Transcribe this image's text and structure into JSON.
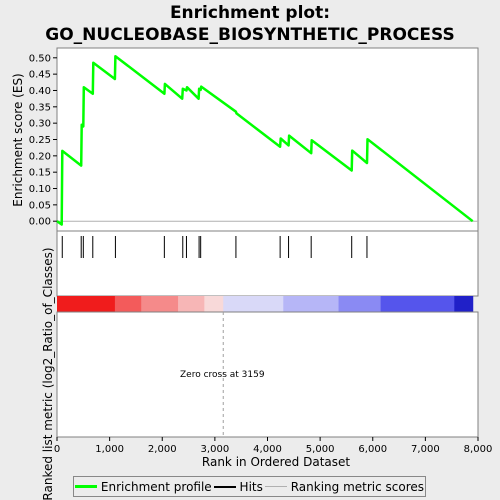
{
  "chart_data": {
    "type": "line",
    "title_line1": "Enrichment plot:",
    "title_line2": "GO_NUCLEOBASE_BIOSYNTHETIC_PROCESS",
    "ylabel_top": "Enrichment score (ES)",
    "ylabel_bottom": "Ranked list metric (log2_Ratio_of_Classes)",
    "xlabel": "Rank in Ordered Dataset",
    "annotation": "Zero cross at 3159",
    "zero_cross": 3159,
    "xlim": [
      0,
      8000
    ],
    "ylim": [
      -0.03,
      0.53
    ],
    "x_ticks": [
      0,
      1000,
      2000,
      3000,
      4000,
      5000,
      6000,
      7000,
      8000
    ],
    "x_tick_labels": [
      "0",
      "1,000",
      "2,000",
      "3,000",
      "4,000",
      "5,000",
      "6,000",
      "7,000",
      "8,000"
    ],
    "y_ticks": [
      0.0,
      0.05,
      0.1,
      0.15,
      0.2,
      0.25,
      0.3,
      0.35,
      0.4,
      0.45,
      0.5
    ],
    "y_tick_labels": [
      "0.00",
      "0.05",
      "0.10",
      "0.15",
      "0.20",
      "0.25",
      "0.30",
      "0.35",
      "0.40",
      "0.45",
      "0.50"
    ],
    "series": [
      {
        "name": "Enrichment profile",
        "color": "#00ff00",
        "points": [
          [
            0,
            0.0
          ],
          [
            90,
            -0.01
          ],
          [
            100,
            0.215
          ],
          [
            460,
            0.17
          ],
          [
            470,
            0.295
          ],
          [
            500,
            0.29
          ],
          [
            510,
            0.41
          ],
          [
            680,
            0.39
          ],
          [
            690,
            0.485
          ],
          [
            1100,
            0.435
          ],
          [
            1110,
            0.505
          ],
          [
            2040,
            0.39
          ],
          [
            2050,
            0.42
          ],
          [
            2380,
            0.375
          ],
          [
            2390,
            0.405
          ],
          [
            2460,
            0.4
          ],
          [
            2470,
            0.41
          ],
          [
            2690,
            0.375
          ],
          [
            2700,
            0.405
          ],
          [
            2730,
            0.402
          ],
          [
            2740,
            0.412
          ],
          [
            3400,
            0.335
          ],
          [
            3410,
            0.33
          ],
          [
            4240,
            0.228
          ],
          [
            4250,
            0.253
          ],
          [
            4400,
            0.232
          ],
          [
            4410,
            0.262
          ],
          [
            4830,
            0.208
          ],
          [
            4840,
            0.248
          ],
          [
            5600,
            0.155
          ],
          [
            5610,
            0.216
          ],
          [
            5890,
            0.178
          ],
          [
            5900,
            0.251
          ],
          [
            7900,
            0.0
          ]
        ]
      }
    ],
    "hits": [
      100,
      460,
      500,
      680,
      1110,
      2040,
      2390,
      2460,
      2700,
      2730,
      3400,
      4240,
      4400,
      4830,
      5600,
      5890
    ],
    "hits_name": "Hits",
    "ranking_name": "Ranking metric scores",
    "heatmap_segments": [
      {
        "from": 0,
        "to": 1100,
        "color": "#f01c1c"
      },
      {
        "from": 1100,
        "to": 1600,
        "color": "#f35b5b"
      },
      {
        "from": 1600,
        "to": 2300,
        "color": "#f58a8a"
      },
      {
        "from": 2300,
        "to": 2800,
        "color": "#f7b6b6"
      },
      {
        "from": 2800,
        "to": 3159,
        "color": "#f8d9d9"
      },
      {
        "from": 3159,
        "to": 4300,
        "color": "#d9d9f8"
      },
      {
        "from": 4300,
        "to": 5350,
        "color": "#b6b6f7"
      },
      {
        "from": 5350,
        "to": 6150,
        "color": "#8a8af3"
      },
      {
        "from": 6150,
        "to": 7550,
        "color": "#5555ec"
      },
      {
        "from": 7550,
        "to": 7900,
        "color": "#2020c8"
      }
    ],
    "grid": false
  }
}
